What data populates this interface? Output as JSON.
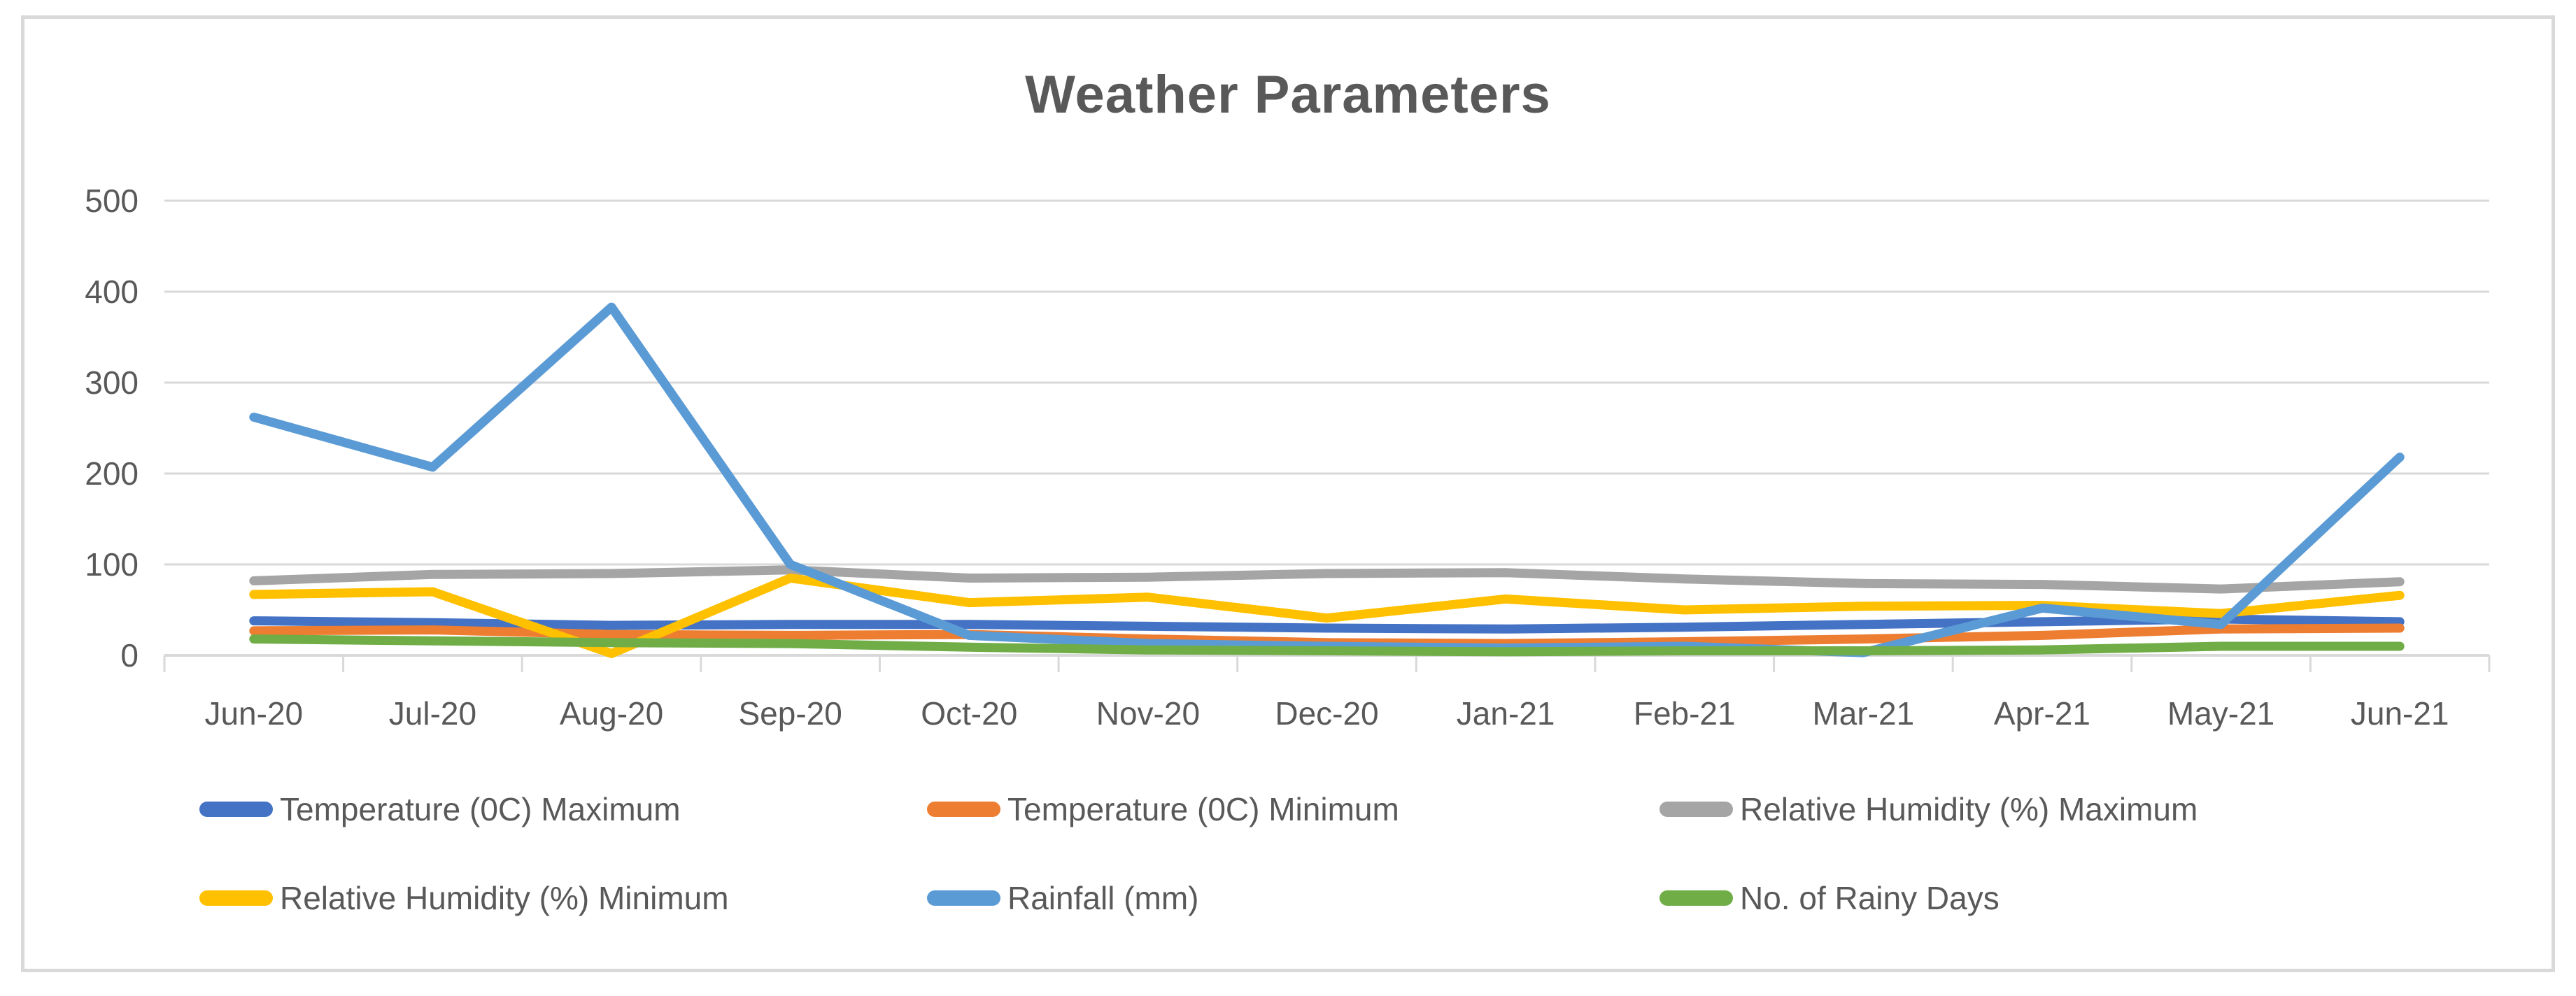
{
  "chart_data": {
    "type": "line",
    "title": "Weather Parameters",
    "categories": [
      "Jun-20",
      "Jul-20",
      "Aug-20",
      "Sep-20",
      "Oct-20",
      "Nov-20",
      "Dec-20",
      "Jan-21",
      "Feb-21",
      "Mar-21",
      "Apr-21",
      "May-21",
      "Jun-21"
    ],
    "yticks": [
      0,
      100,
      200,
      300,
      400,
      500
    ],
    "ylim": [
      0,
      500
    ],
    "grid": true,
    "legend_position": "bottom",
    "series": [
      {
        "key": "temp-max",
        "name": "Temperature (0C) Maximum",
        "color": "#4472C4",
        "values": [
          38,
          36,
          33,
          34,
          34,
          32,
          30,
          29,
          31,
          34,
          37,
          40,
          37
        ]
      },
      {
        "key": "temp-min",
        "name": "Temperature (0C) Minimum",
        "color": "#ED7D31",
        "values": [
          27,
          28,
          23,
          22,
          23,
          18,
          14,
          13,
          15,
          18,
          22,
          29,
          30
        ]
      },
      {
        "key": "rh-max",
        "name": "Relative Humidity (%) Maximum",
        "color": "#A5A5A5",
        "values": [
          82,
          89,
          90,
          94,
          85,
          86,
          90,
          91,
          84,
          79,
          78,
          73,
          81
        ]
      },
      {
        "key": "rh-min",
        "name": "Relative Humidity (%) Minimum",
        "color": "#FFC000",
        "values": [
          67,
          70,
          2,
          85,
          58,
          64,
          41,
          62,
          50,
          54,
          55,
          46,
          66
        ]
      },
      {
        "key": "rainfall",
        "name": "Rainfall (mm)",
        "color": "#5B9BD5",
        "values": [
          262,
          207,
          383,
          100,
          22,
          13,
          10,
          8,
          10,
          3,
          52,
          34,
          218
        ]
      },
      {
        "key": "rainy-days",
        "name": "No. of Rainy Days",
        "color": "#70AD47",
        "values": [
          18,
          16,
          14,
          13,
          9,
          6,
          5,
          4,
          5,
          5,
          6,
          10,
          10
        ]
      }
    ],
    "legend_rows": [
      [
        "temp-max",
        "temp-min",
        "rh-max"
      ],
      [
        "rh-min",
        "rainfall",
        "rainy-days"
      ]
    ],
    "colors": {
      "grid": "#D9D9D9",
      "axis": "#D9D9D9",
      "text": "#595959",
      "title": "#595959",
      "frame": "#D9D9D9",
      "background": "#FFFFFF"
    }
  }
}
